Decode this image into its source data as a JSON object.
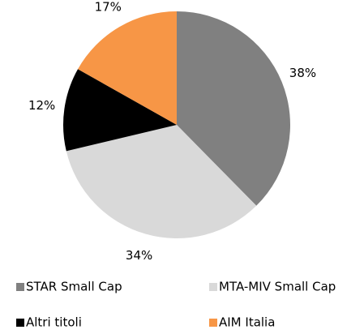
{
  "chart_data": {
    "type": "pie",
    "categories": [
      "STAR Small Cap",
      "MTA-MIV Small Cap",
      "Altri titoli",
      "AIM Italia"
    ],
    "values": [
      38,
      34,
      12,
      17
    ],
    "value_labels": [
      "38%",
      "34%",
      "12%",
      "17%"
    ],
    "colors": [
      "#808080",
      "#d9d9d9",
      "#000000",
      "#f79646"
    ],
    "legend": "bottom"
  }
}
